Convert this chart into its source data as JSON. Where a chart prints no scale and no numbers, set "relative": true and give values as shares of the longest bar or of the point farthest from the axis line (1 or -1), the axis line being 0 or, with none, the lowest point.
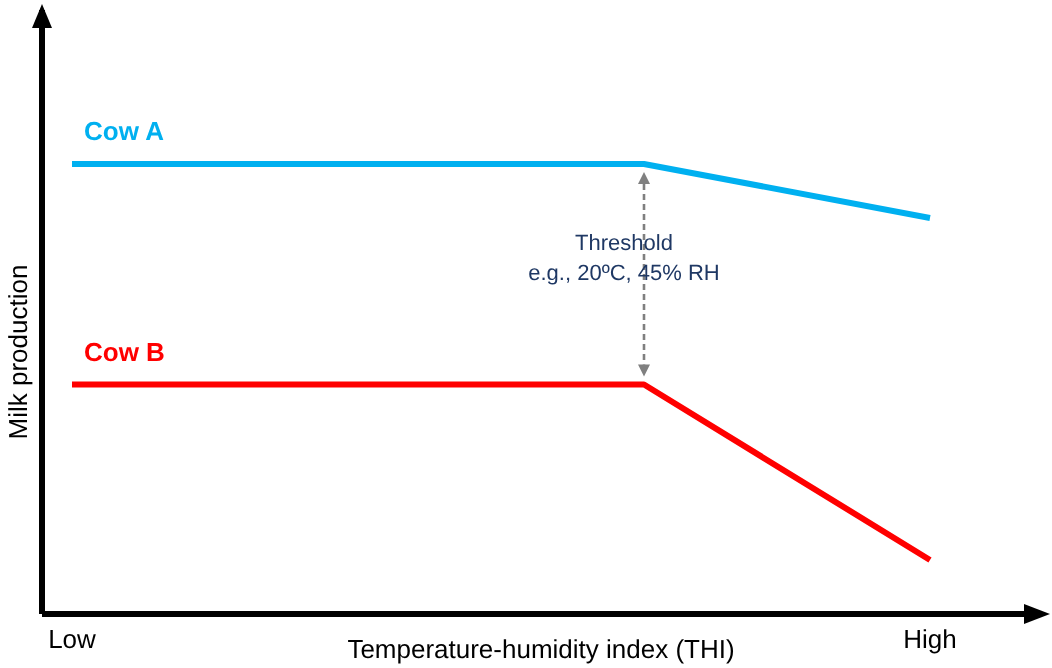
{
  "chart_data": {
    "type": "line",
    "relative": true,
    "xlabel": "Temperature-humidity index (THI)",
    "ylabel": "Milk production",
    "categories": [
      "Low",
      null,
      null,
      "High"
    ],
    "tick_labels": "x",
    "grid": false,
    "legend": false,
    "marker": "none",
    "line_style": "solid",
    "series": [
      {
        "name": "Cow A",
        "color": "#00b0f0",
        "values": [
          1,
          1,
          1,
          0.88
        ]
      },
      {
        "name": "Cow B",
        "color": "#ff0000",
        "values": [
          0.51,
          0.51,
          0.51,
          0.12
        ]
      }
    ],
    "annotations": [
      "Threshold\ne.g., 20ºC, 45% RH"
    ]
  }
}
